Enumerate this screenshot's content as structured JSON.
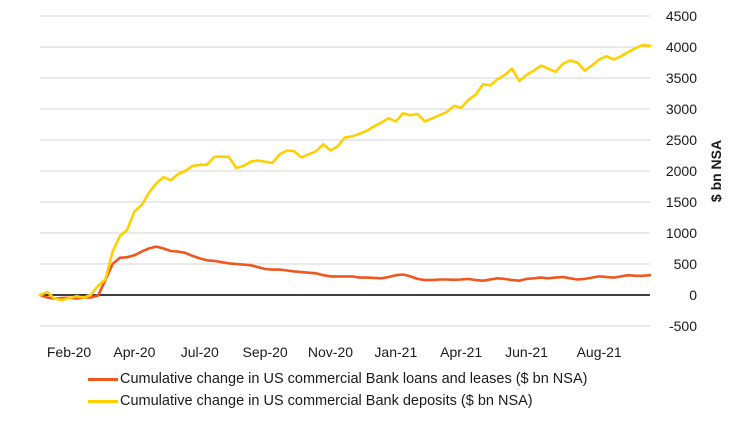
{
  "chart_data": {
    "type": "line",
    "xlabel": "",
    "ylabel": "$ bn NSA",
    "ylim": [
      -500,
      4500
    ],
    "yticks": [
      4500,
      4000,
      3500,
      3000,
      2500,
      2000,
      1500,
      1000,
      500,
      0,
      -500
    ],
    "x_tick_labels": [
      "Feb-20",
      "Apr-20",
      "Jul-20",
      "Sep-20",
      "Nov-20",
      "Jan-21",
      "Apr-21",
      "Jun-21",
      "Aug-21"
    ],
    "x_tick_weeks": [
      4,
      13,
      22,
      31,
      40,
      49,
      58,
      67,
      77
    ],
    "grid": "horizontal",
    "legend_position": "bottom",
    "series": [
      {
        "name": "Cumulative change in US commercial Bank loans and leases ($ bn NSA)",
        "color": "#f0561d",
        "values": [
          0,
          -40,
          -60,
          -50,
          -45,
          -55,
          -40,
          -40,
          -10,
          240,
          500,
          600,
          610,
          640,
          700,
          750,
          780,
          750,
          710,
          700,
          680,
          630,
          590,
          560,
          550,
          530,
          510,
          500,
          490,
          480,
          450,
          420,
          410,
          410,
          395,
          380,
          370,
          360,
          350,
          320,
          300,
          300,
          300,
          300,
          280,
          280,
          275,
          270,
          290,
          320,
          330,
          300,
          260,
          240,
          240,
          250,
          250,
          245,
          250,
          260,
          240,
          230,
          250,
          270,
          260,
          240,
          230,
          260,
          270,
          280,
          270,
          280,
          290,
          270,
          250,
          260,
          280,
          300,
          290,
          280,
          300,
          320,
          310,
          310,
          320
        ]
      },
      {
        "name": "Cumulative change in US commercial Bank deposits ($ bn NSA)",
        "color": "#ffd000",
        "values": [
          0,
          50,
          -60,
          -80,
          -50,
          -20,
          -40,
          0,
          150,
          250,
          700,
          950,
          1050,
          1350,
          1450,
          1650,
          1800,
          1900,
          1850,
          1950,
          2000,
          2080,
          2100,
          2100,
          2230,
          2230,
          2230,
          2050,
          2080,
          2150,
          2170,
          2150,
          2130,
          2270,
          2330,
          2320,
          2220,
          2270,
          2320,
          2430,
          2330,
          2400,
          2540,
          2560,
          2600,
          2650,
          2720,
          2780,
          2850,
          2800,
          2930,
          2900,
          2920,
          2800,
          2850,
          2900,
          2950,
          3050,
          3020,
          3150,
          3230,
          3400,
          3380,
          3480,
          3550,
          3650,
          3450,
          3550,
          3620,
          3700,
          3650,
          3600,
          3730,
          3780,
          3750,
          3620,
          3700,
          3800,
          3850,
          3800,
          3850,
          3920,
          3980,
          4030,
          4020
        ]
      }
    ]
  }
}
